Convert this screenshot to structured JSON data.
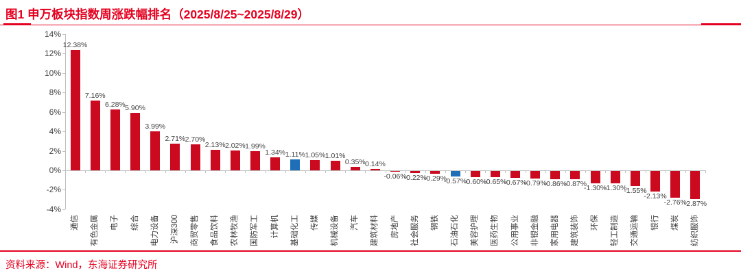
{
  "header": {
    "figure_label": "图1",
    "title": "图1  申万板块指数周涨跌幅排名（2025/8/25~2025/8/29）"
  },
  "footer": {
    "source": "资料来源：Wind，东海证券研究所"
  },
  "colors": {
    "accent_red": "#e4001f",
    "bar_red": "#cc0a1f",
    "bar_blue": "#1e6fb8",
    "axis_gray": "#bfbfbf",
    "label_gray": "#3f3f3f"
  },
  "chart_data": {
    "type": "bar",
    "title": "申万板块指数周涨跌幅排名（2025/8/25~2025/8/29）",
    "xlabel": "",
    "ylabel": "",
    "unit": "%",
    "ylim": [
      -4,
      14
    ],
    "grid": false,
    "legend": "none",
    "categories": [
      "通信",
      "有色金属",
      "电子",
      "综合",
      "电力设备",
      "沪深300",
      "商贸零售",
      "食品饮料",
      "农林牧渔",
      "国防军工",
      "计算机",
      "基础化工",
      "传媒",
      "机械设备",
      "汽车",
      "建筑材料",
      "房地产",
      "社会服务",
      "钢铁",
      "石油石化",
      "美容护理",
      "医药生物",
      "公用事业",
      "非银金融",
      "家用电器",
      "建筑装饰",
      "环保",
      "轻工制造",
      "交通运输",
      "银行",
      "煤炭",
      "纺织服饰"
    ],
    "values": [
      12.38,
      7.16,
      6.28,
      5.9,
      3.99,
      2.71,
      2.7,
      2.13,
      2.02,
      1.99,
      1.34,
      1.11,
      1.05,
      1.01,
      0.35,
      0.14,
      -0.06,
      -0.22,
      -0.29,
      -0.57,
      -0.6,
      -0.65,
      -0.67,
      -0.79,
      -0.86,
      -0.87,
      -1.3,
      -1.3,
      -1.55,
      -2.13,
      -2.76,
      -2.87
    ],
    "value_labels": [
      "12.38%",
      "7.16%",
      "6.28%",
      "5.90%",
      "3.99%",
      "2.71%",
      "2.70%",
      "2.13%",
      "2.02%",
      "1.99%",
      "1.34%",
      "1.11%",
      "1.05%",
      "1.01%",
      "0.35%",
      "0.14%",
      "-0.06%",
      "-0.22%",
      "-0.29%",
      "-0.57%",
      "-0.60%",
      "-0.65%",
      "-0.67%",
      "-0.79%",
      "-0.86%",
      "-0.87%",
      "-1.30%",
      "-1.30%",
      "-1.55%",
      "-2.13%",
      "-2.76%",
      "-2.87%"
    ],
    "highlight_indices": [
      11,
      19
    ],
    "highlight_categories": [
      "基础化工",
      "石油石化"
    ],
    "ytick_values": [
      14,
      12,
      10,
      8,
      6,
      4,
      2,
      0,
      -2,
      -4
    ],
    "ytick_labels": [
      "14%",
      "12%",
      "10%",
      "8%",
      "6%",
      "4%",
      "2%",
      "0%",
      "-2%",
      "-4%"
    ]
  }
}
